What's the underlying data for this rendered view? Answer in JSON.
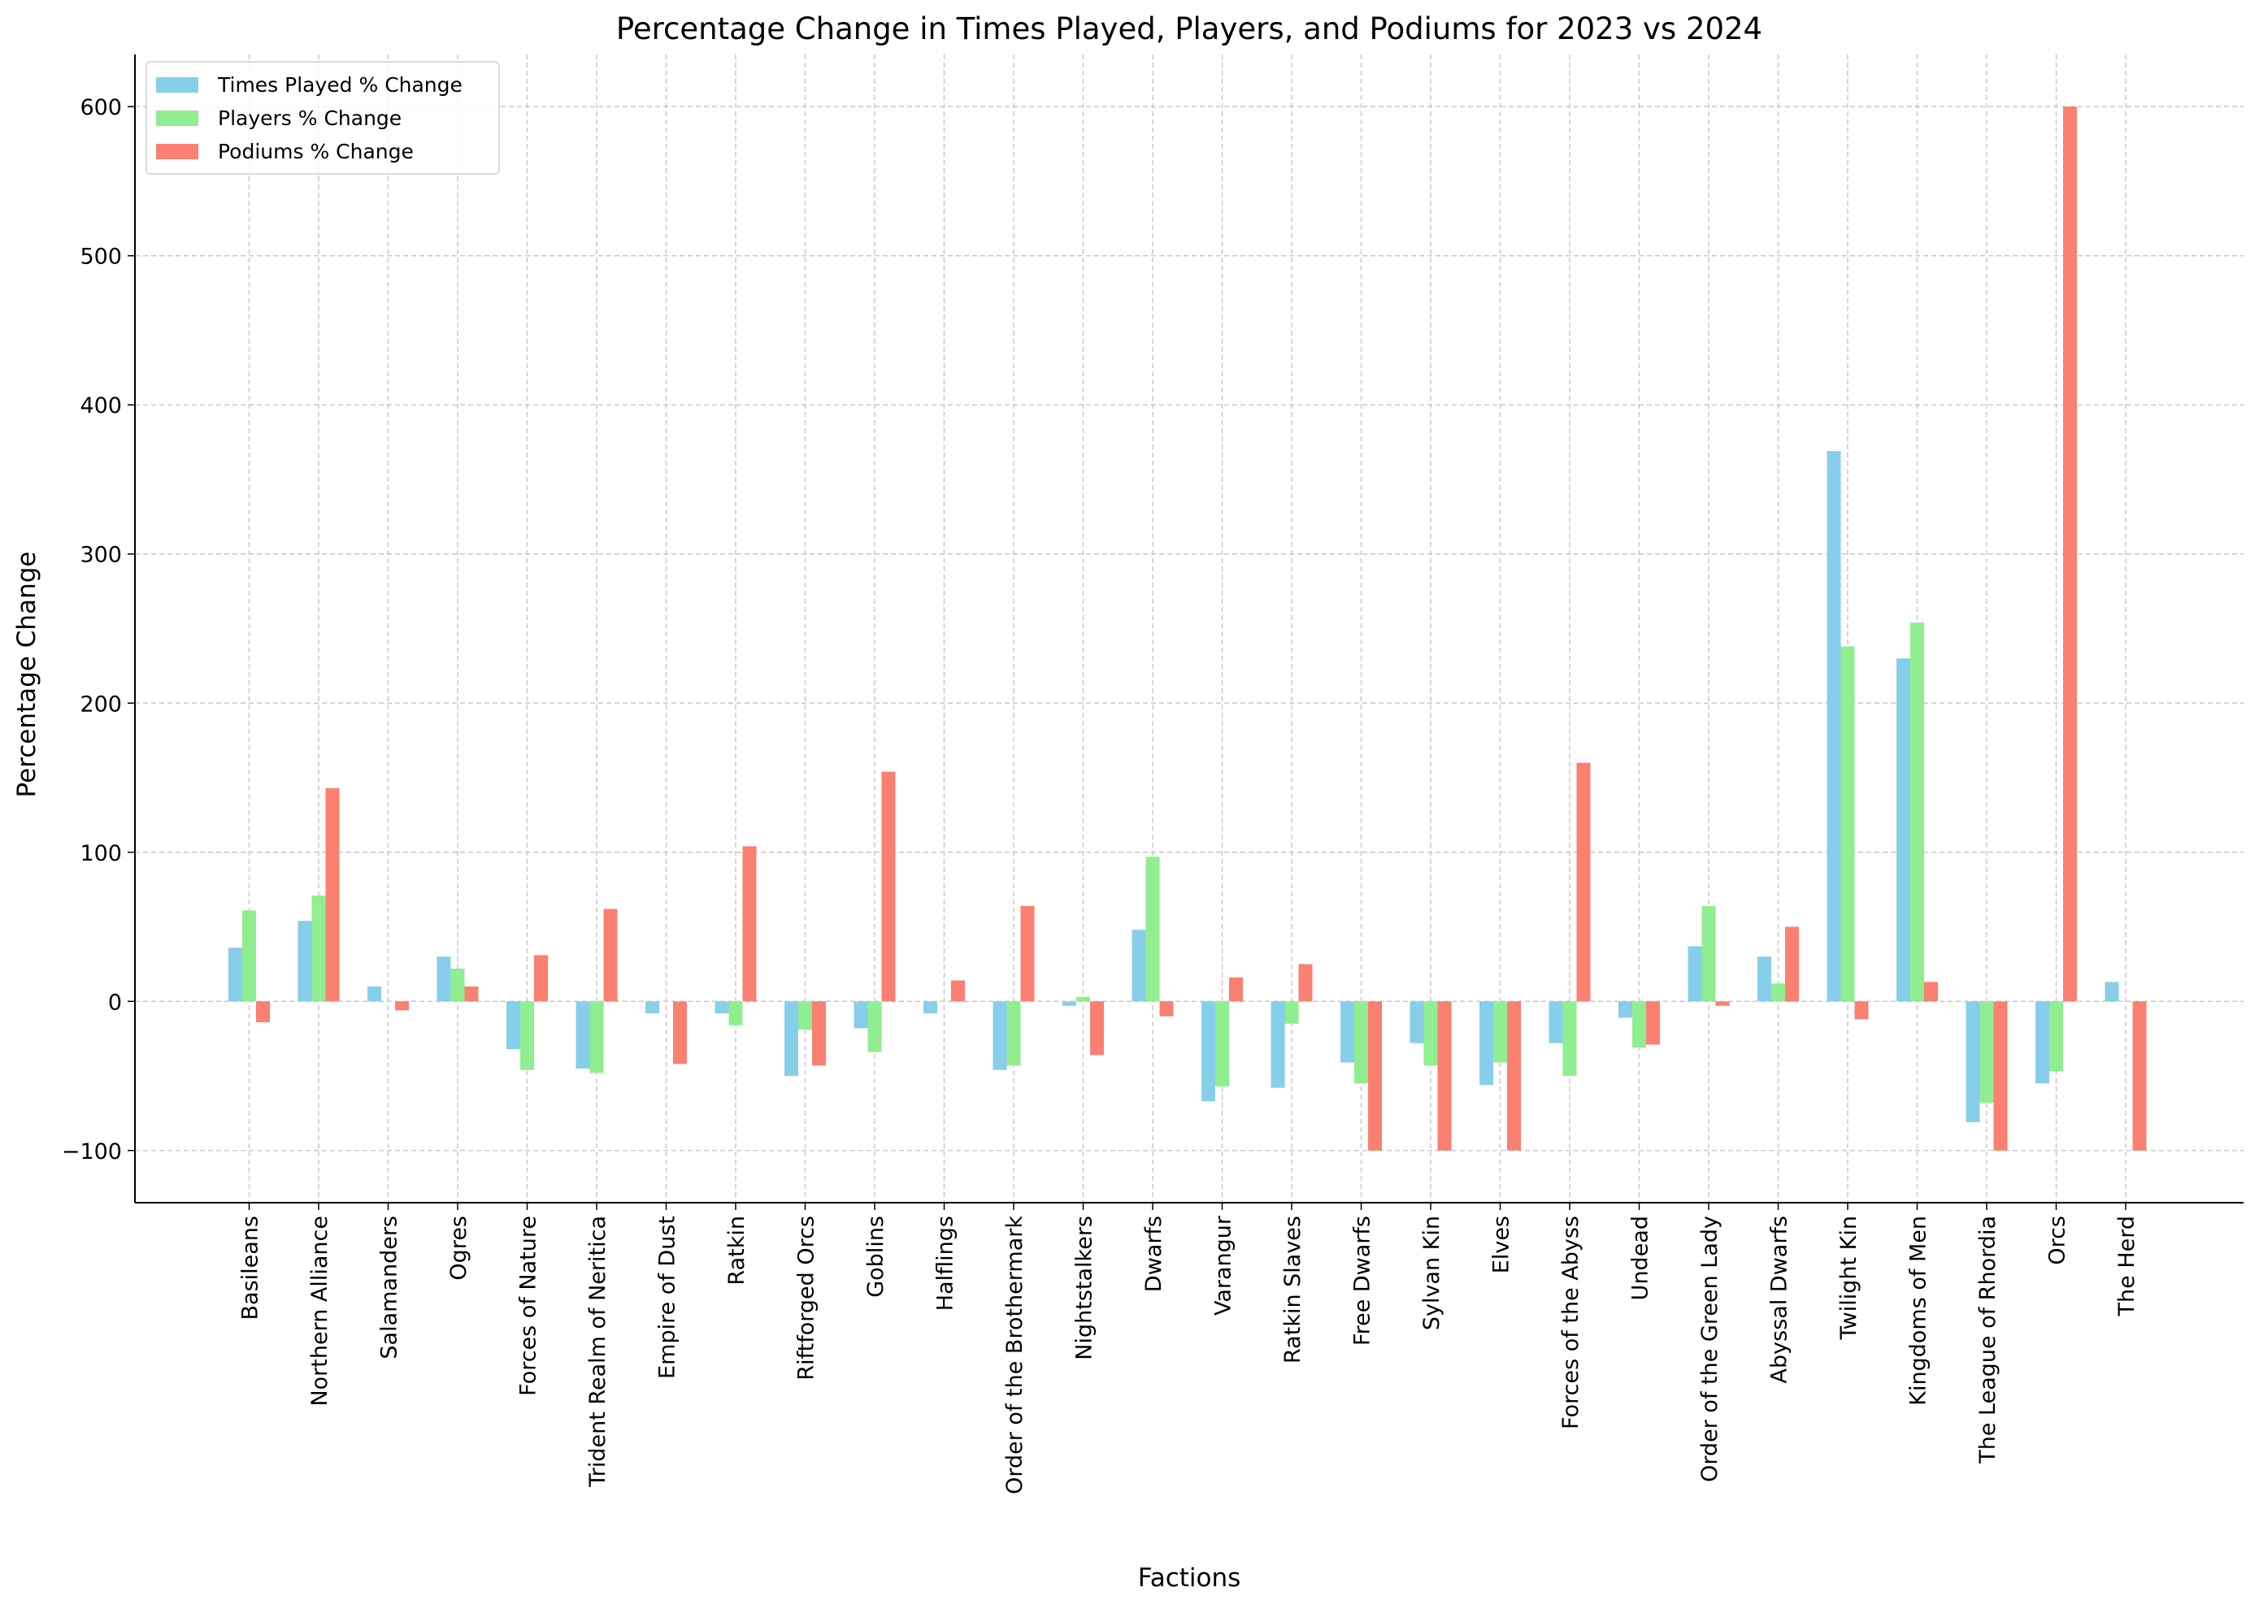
{
  "chart_data": {
    "type": "bar",
    "title": "Percentage Change in Times Played, Players, and Podiums for 2023 vs 2024",
    "xlabel": "Factions",
    "ylabel": "Percentage Change",
    "ylim": [
      -135,
      635
    ],
    "yticks": [
      -100,
      0,
      100,
      200,
      300,
      400,
      500,
      600
    ],
    "ytick_labels": [
      "−100",
      "0",
      "100",
      "200",
      "300",
      "400",
      "500",
      "600"
    ],
    "grid": true,
    "legend_position": "top-left",
    "categories": [
      "Basileans",
      "Northern Alliance",
      "Salamanders",
      "Ogres",
      "Forces of Nature",
      "Trident Realm of Neritica",
      "Empire of Dust",
      "Ratkin",
      "Riftforged Orcs",
      "Goblins",
      "Halflings",
      "Order of the Brothermark",
      "Nightstalkers",
      "Dwarfs",
      "Varangur",
      "Ratkin Slaves",
      "Free Dwarfs",
      "Sylvan Kin",
      "Elves",
      "Forces of the Abyss",
      "Undead",
      "Order of the Green Lady",
      "Abyssal Dwarfs",
      "Twilight Kin",
      "Kingdoms of Men",
      "The League of Rhordia",
      "Orcs",
      "The Herd"
    ],
    "series": [
      {
        "name": "Times Played % Change",
        "color": "#87ceeb",
        "values": [
          36,
          54,
          10,
          30,
          -32,
          -45,
          -8,
          -8,
          -50,
          -18,
          -8,
          -46,
          -3,
          48,
          -67,
          -58,
          -41,
          -28,
          -56,
          -28,
          -11,
          37,
          30,
          369,
          230,
          -81,
          -55,
          13
        ]
      },
      {
        "name": "Players % Change",
        "color": "#90ee90",
        "values": [
          61,
          71,
          0,
          22,
          -46,
          -48,
          0,
          -16,
          -19,
          -34,
          0,
          -43,
          3,
          97,
          -57,
          -15,
          -55,
          -43,
          -41,
          -50,
          -31,
          64,
          12,
          238,
          254,
          -68,
          -47,
          0
        ]
      },
      {
        "name": "Podiums % Change",
        "color": "#fa8072",
        "values": [
          -14,
          143,
          -6,
          10,
          31,
          62,
          -42,
          104,
          -43,
          154,
          14,
          64,
          -36,
          -10,
          16,
          25,
          -100,
          -100,
          -100,
          160,
          -29,
          -3,
          50,
          -12,
          13,
          -100,
          600,
          -100
        ]
      }
    ]
  }
}
